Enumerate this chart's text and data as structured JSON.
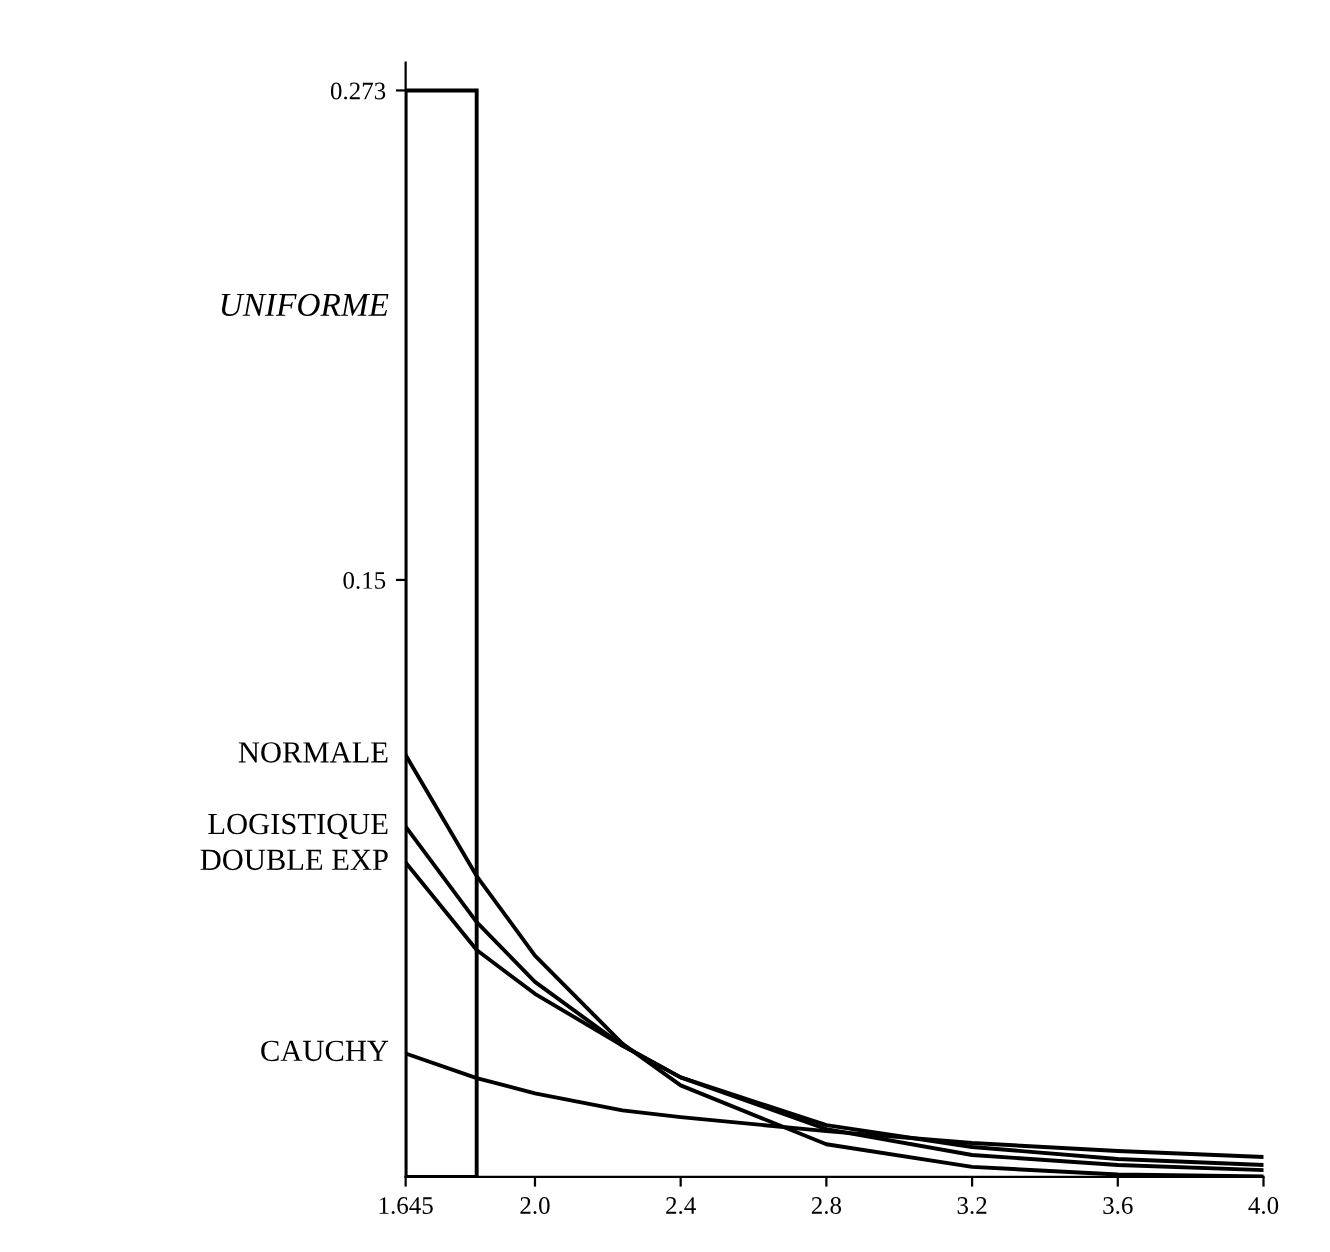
{
  "chart_data": {
    "type": "line",
    "xlim": [
      1.645,
      4.0
    ],
    "xticks": [
      1.645,
      {
        "value": 2,
        "label": "2.0"
      },
      2.4,
      2.8,
      3.2,
      3.6,
      {
        "value": 4,
        "label": "4.0"
      }
    ],
    "ylim": [
      0,
      0.28
    ],
    "yticks": [
      0.15,
      0.273
    ],
    "grid": false,
    "legend": false,
    "line_style": "solid",
    "marker": "none",
    "series": [
      {
        "name": "NORMALE",
        "color": "#000000",
        "x": [
          1.645,
          1.84,
          2.0,
          2.24,
          2.4,
          2.8,
          3.2,
          3.6,
          4.0
        ],
        "values": [
          0.106,
          0.0756,
          0.0556,
          0.0335,
          0.023,
          0.0082,
          0.0025,
          0.0006,
          0.0001
        ]
      },
      {
        "name": "LOGISTIQUE",
        "color": "#000000",
        "x": [
          1.645,
          1.84,
          2.0,
          2.24,
          2.4,
          2.8,
          3.2,
          3.6,
          4.0
        ],
        "values": [
          0.088,
          0.064,
          0.049,
          0.033,
          0.025,
          0.012,
          0.0055,
          0.003,
          0.0017
        ]
      },
      {
        "name": "DOUBLE EXP",
        "color": "#000000",
        "x": [
          1.645,
          1.84,
          2.0,
          2.24,
          2.4,
          2.8,
          3.2,
          3.6,
          4.0
        ],
        "values": [
          0.079,
          0.057,
          0.046,
          0.033,
          0.025,
          0.013,
          0.0075,
          0.0045,
          0.003
        ]
      },
      {
        "name": "CAUCHY",
        "color": "#000000",
        "x": [
          1.645,
          1.84,
          2.0,
          2.24,
          2.4,
          2.8,
          3.2,
          3.6,
          4.0
        ],
        "values": [
          0.031,
          0.0248,
          0.021,
          0.0167,
          0.015,
          0.0115,
          0.0085,
          0.0065,
          0.005
        ]
      },
      {
        "name": "UNIFORME",
        "type": "histogram",
        "color": "#000000",
        "bins": [
          1.645,
          1.84
        ],
        "values": [
          0.273
        ]
      }
    ]
  }
}
